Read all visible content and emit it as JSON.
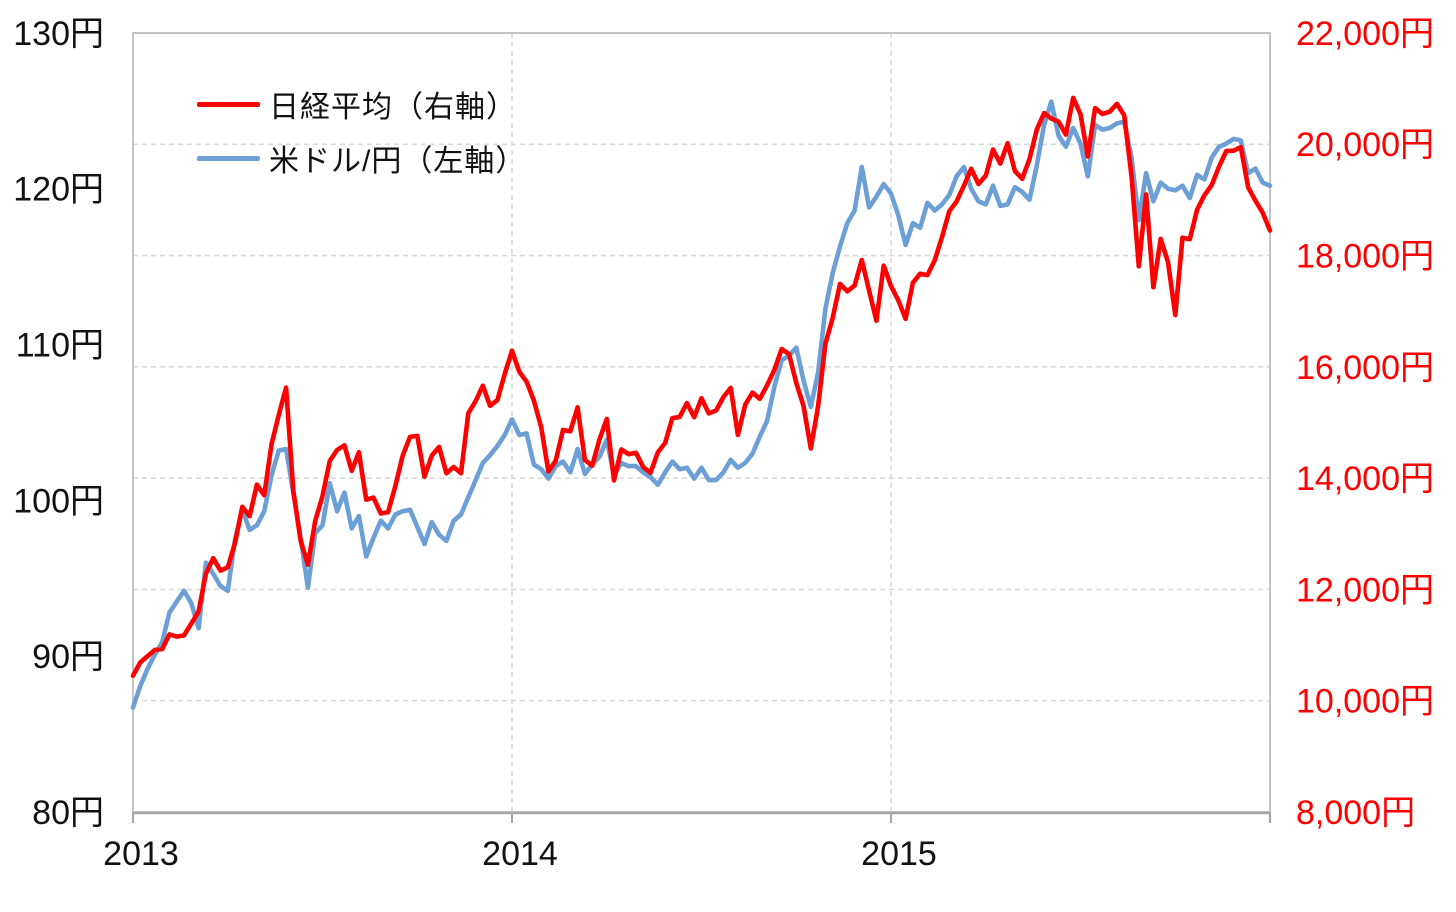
{
  "chart_data": {
    "type": "line",
    "title": "",
    "x_axis": {
      "tick_labels": [
        "2013",
        "2014",
        "2015"
      ],
      "tick_years": [
        2013,
        2014,
        2015
      ],
      "range_years": [
        2013,
        2016
      ],
      "axis_color": "#a6a6a6",
      "label_color": "#111111"
    },
    "left_axis": {
      "title": "米ドル/円",
      "tick_labels": [
        "130円",
        "120円",
        "110円",
        "100円",
        "90円",
        "80円"
      ],
      "tick_values": [
        130,
        120,
        110,
        100,
        90,
        80
      ],
      "range": [
        80,
        130
      ],
      "label_color": "#111111"
    },
    "right_axis": {
      "title": "日経平均",
      "tick_labels": [
        "22,000円",
        "20,000円",
        "18,000円",
        "16,000円",
        "14,000円",
        "12,000円",
        "10,000円",
        "8,000円"
      ],
      "tick_values": [
        22000,
        20000,
        18000,
        16000,
        14000,
        12000,
        10000,
        8000
      ],
      "range": [
        8000,
        22000
      ],
      "gridline_values": [
        20000,
        18000,
        16000,
        14000,
        12000,
        10000
      ],
      "label_color": "#ff0000"
    },
    "grid": {
      "on": true,
      "color": "#d9d9d9",
      "style": "dashed",
      "vertical_at_years": [
        2014,
        2015
      ]
    },
    "legend": {
      "position": "top-left-inside",
      "items": [
        {
          "label": "日経平均（右軸）",
          "color": "#ff0000"
        },
        {
          "label": "米ドル/円（左軸）",
          "color": "#6c9fd6"
        }
      ]
    },
    "series": [
      {
        "name": "米ドル/円（左軸）",
        "axis": "left",
        "color": "#6c9fd6",
        "points_per_year": 52,
        "start_year": 2013.0,
        "values": [
          86.7,
          88.1,
          89.2,
          90.1,
          90.9,
          92.8,
          93.5,
          94.2,
          93.4,
          91.8,
          96.0,
          95.3,
          94.5,
          94.2,
          97.5,
          99.4,
          98.1,
          98.4,
          99.3,
          101.6,
          103.2,
          103.3,
          100.5,
          97.6,
          94.4,
          97.9,
          98.4,
          101.1,
          99.3,
          100.5,
          98.2,
          99.0,
          96.4,
          97.6,
          98.7,
          98.2,
          99.1,
          99.3,
          99.4,
          98.3,
          97.2,
          98.6,
          97.8,
          97.4,
          98.7,
          99.1,
          100.2,
          101.3,
          102.4,
          102.9,
          103.5,
          104.2,
          105.2,
          104.2,
          104.3,
          102.3,
          102.0,
          101.4,
          102.2,
          102.5,
          101.8,
          103.3,
          101.7,
          102.3,
          102.8,
          103.9,
          101.6,
          102.4,
          102.2,
          102.2,
          101.8,
          101.5,
          101.0,
          101.8,
          102.5,
          102.0,
          102.1,
          101.4,
          102.1,
          101.3,
          101.3,
          101.8,
          102.6,
          102.1,
          102.4,
          103.0,
          104.1,
          105.1,
          107.3,
          109.0,
          109.3,
          109.8,
          107.7,
          106.0,
          108.2,
          112.3,
          114.6,
          116.3,
          117.8,
          118.6,
          121.4,
          118.8,
          119.5,
          120.3,
          119.7,
          118.3,
          116.4,
          117.8,
          117.5,
          119.1,
          118.6,
          119.0,
          119.6,
          120.8,
          121.4,
          120.0,
          119.2,
          119.0,
          120.2,
          118.9,
          119.0,
          120.1,
          119.8,
          119.3,
          121.5,
          124.1,
          125.6,
          123.4,
          122.7,
          123.9,
          122.9,
          120.8,
          124.1,
          123.8,
          123.9,
          124.2,
          124.3,
          122.0,
          118.0,
          121.0,
          119.2,
          120.4,
          120.0,
          119.9,
          120.2,
          119.4,
          120.9,
          120.6,
          122.0,
          122.7,
          122.9,
          123.2,
          123.1,
          121.0,
          121.3,
          120.4,
          120.2
        ]
      },
      {
        "name": "日経平均（右軸）",
        "axis": "right",
        "color": "#ff0000",
        "points_per_year": 52,
        "start_year": 2013.0,
        "values": [
          10450,
          10688,
          10801,
          10913,
          10927,
          11191,
          11153,
          11173,
          11385,
          11606,
          12284,
          12561,
          12338,
          12398,
          12834,
          13485,
          13316,
          13884,
          13694,
          14607,
          15138,
          15627,
          13775,
          12878,
          12445,
          13230,
          13677,
          14310,
          14506,
          14590,
          14130,
          14466,
          13615,
          13650,
          13365,
          13389,
          13860,
          14405,
          14742,
          14760,
          14024,
          14405,
          14562,
          14088,
          14201,
          14087,
          15165,
          15382,
          15662,
          15300,
          15403,
          15870,
          16291,
          15912,
          15734,
          15392,
          14914,
          14120,
          14313,
          14865,
          14841,
          15274,
          14328,
          14224,
          14696,
          15064,
          13960,
          14516,
          14430,
          14457,
          14199,
          14096,
          14462,
          14632,
          15077,
          15098,
          15349,
          15095,
          15437,
          15164,
          15216,
          15457,
          15621,
          14778,
          15318,
          15539,
          15425,
          15668,
          15948,
          16321,
          16230,
          15709,
          15300,
          14532,
          15292,
          16413,
          16880,
          17490,
          17358,
          17460,
          17920,
          17371,
          16830,
          17819,
          17451,
          17197,
          16864,
          17512,
          17674,
          17649,
          17913,
          18332,
          18798,
          18971,
          19254,
          19560,
          19286,
          19435,
          19907,
          19653,
          20020,
          19520,
          19379,
          19733,
          20264,
          20563,
          20461,
          20407,
          20174,
          20834,
          20540,
          19780,
          20651,
          20545,
          20585,
          20725,
          20519,
          19435,
          17807,
          19100,
          17430,
          18300,
          17881,
          16930,
          18322,
          18292,
          18825,
          19083,
          19266,
          19597,
          19880,
          19884,
          19950,
          19230,
          18987,
          18770,
          18450
        ]
      }
    ]
  }
}
